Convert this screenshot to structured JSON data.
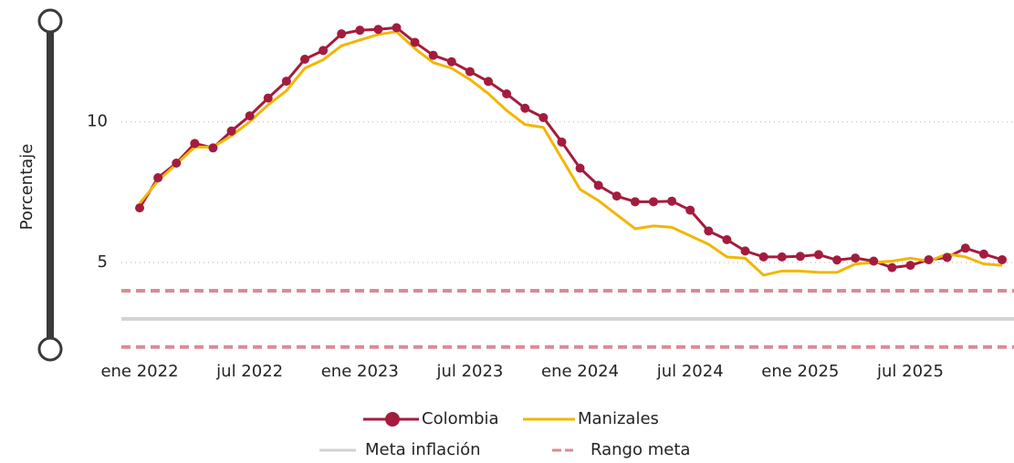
{
  "chart_data": {
    "type": "line",
    "y_label": "Porcentaje",
    "x": [
      "2022-01",
      "2022-02",
      "2022-03",
      "2022-04",
      "2022-05",
      "2022-06",
      "2022-07",
      "2022-08",
      "2022-09",
      "2022-10",
      "2022-11",
      "2022-12",
      "2023-01",
      "2023-02",
      "2023-03",
      "2023-04",
      "2023-05",
      "2023-06",
      "2023-07",
      "2023-08",
      "2023-09",
      "2023-10",
      "2023-11",
      "2023-12",
      "2024-01",
      "2024-02",
      "2024-03",
      "2024-04",
      "2024-05",
      "2024-06",
      "2024-07",
      "2024-08",
      "2024-09",
      "2024-10",
      "2024-11",
      "2024-12",
      "2025-01",
      "2025-02",
      "2025-03",
      "2025-04",
      "2025-05",
      "2025-06",
      "2025-07",
      "2025-08",
      "2025-09",
      "2025-10",
      "2025-11",
      "2025-12"
    ],
    "xticks": [
      {
        "value": "2022-01",
        "label": "ene 2022"
      },
      {
        "value": "2022-07",
        "label": "jul 2022"
      },
      {
        "value": "2023-01",
        "label": "ene 2023"
      },
      {
        "value": "2023-07",
        "label": "jul 2023"
      },
      {
        "value": "2024-01",
        "label": "ene 2024"
      },
      {
        "value": "2024-07",
        "label": "jul 2024"
      },
      {
        "value": "2025-01",
        "label": "ene 2025"
      },
      {
        "value": "2025-07",
        "label": "jul 2025"
      }
    ],
    "ylim": [
      1.7,
      14
    ],
    "yticks": [
      5,
      10
    ],
    "grid": true,
    "series": [
      {
        "name": "Colombia",
        "color": "#a31c3e",
        "markers": true,
        "values": [
          6.94,
          8.01,
          8.53,
          9.23,
          9.07,
          9.67,
          10.21,
          10.84,
          11.44,
          12.22,
          12.53,
          13.12,
          13.25,
          13.28,
          13.34,
          12.82,
          12.36,
          12.13,
          11.78,
          11.43,
          10.99,
          10.48,
          10.15,
          9.28,
          8.35,
          7.74,
          7.36,
          7.16,
          7.16,
          7.18,
          6.86,
          6.12,
          5.81,
          5.41,
          5.2,
          5.2,
          5.22,
          5.28,
          5.09,
          5.16,
          5.05,
          4.82,
          4.9,
          5.1,
          5.18,
          5.51,
          5.3,
          5.1
        ]
      },
      {
        "name": "Manizales",
        "color": "#f2b600",
        "markers": false,
        "values": [
          7.1,
          7.9,
          8.5,
          9.1,
          9.1,
          9.5,
          10.0,
          10.6,
          11.1,
          11.9,
          12.2,
          12.7,
          12.9,
          13.1,
          13.2,
          12.6,
          12.1,
          11.9,
          11.5,
          11.0,
          10.4,
          9.9,
          9.8,
          8.7,
          7.6,
          7.2,
          6.7,
          6.2,
          6.3,
          6.25,
          5.95,
          5.65,
          5.2,
          5.15,
          4.55,
          4.7,
          4.7,
          4.65,
          4.65,
          4.95,
          5.0,
          5.05,
          5.15,
          5.05,
          5.3,
          5.2,
          4.95,
          4.9
        ]
      }
    ],
    "reference_lines": [
      {
        "name": "Meta inflación",
        "color": "#d3d3d3",
        "dashed": false,
        "values": [
          3
        ]
      },
      {
        "name": "Rango meta",
        "color": "#d98b96",
        "dashed": true,
        "values": [
          2,
          4
        ]
      }
    ]
  }
}
